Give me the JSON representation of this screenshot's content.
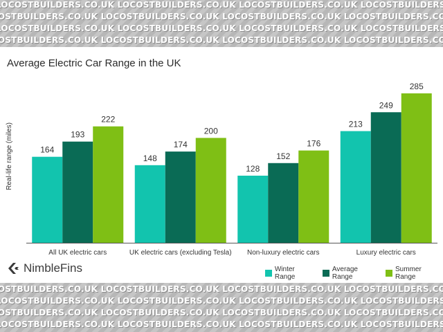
{
  "watermark": {
    "text": "LOCOSTBUILDERS.CO.UK  LOCOSTBUILDERS.CO.UK  LOCOSTBUILDERS.CO.UK  LOCOSTBUILDERS.CO.UK"
  },
  "brand": {
    "name": "NimbleFins",
    "icon": "chevron-k-logo-icon"
  },
  "colors": {
    "winter": "#12c4ae",
    "average": "#0a6b55",
    "summer": "#7fbf15",
    "axis": "#555555",
    "text": "#333333"
  },
  "chart_data": {
    "type": "bar",
    "title": "Average Electric Car Range in the UK",
    "xlabel": "",
    "ylabel": "Real-life range (miles)",
    "ylim": [
      0,
      300
    ],
    "grid": false,
    "legend_position": "bottom-right",
    "categories": [
      "All UK electric cars",
      "UK electric cars (excluding Tesla)",
      "Non-luxury electric cars",
      "Luxury electric cars"
    ],
    "series": [
      {
        "name": "Winter Range",
        "values": [
          164,
          148,
          128,
          213
        ]
      },
      {
        "name": "Average Range",
        "values": [
          193,
          174,
          152,
          249
        ]
      },
      {
        "name": "Summer Range",
        "values": [
          222,
          200,
          176,
          285
        ]
      }
    ]
  }
}
